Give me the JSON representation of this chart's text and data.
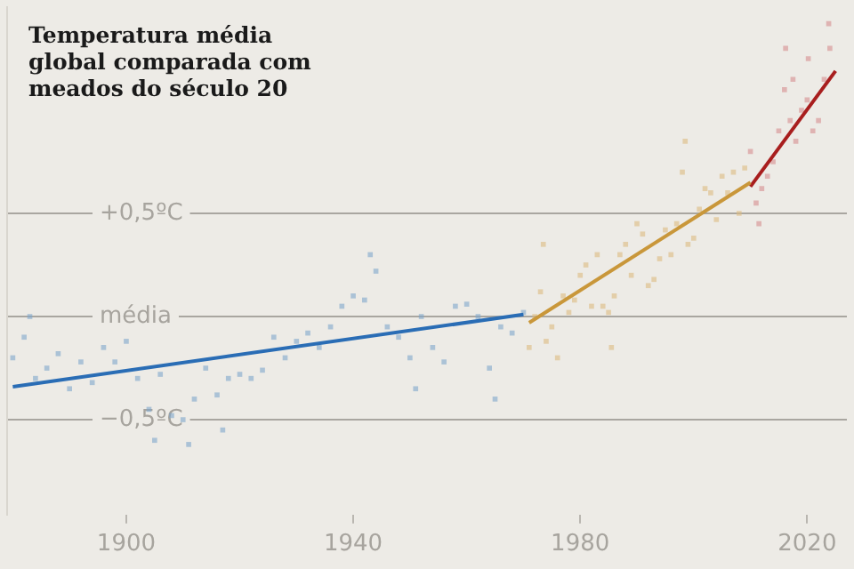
{
  "chart_data": {
    "type": "scatter",
    "title": "Temperatura média global comparada com meados do século 20",
    "xlim": [
      1879,
      2027
    ],
    "xticks": [
      1900,
      1940,
      1980,
      2020
    ],
    "ylim": [
      -0.96,
      1.5
    ],
    "yticks": [
      {
        "value": 0.5,
        "label": "+0,5ºC"
      },
      {
        "value": 0,
        "label": "média"
      },
      {
        "value": -0.5,
        "label": "−0,5ºC"
      }
    ],
    "grid": "y",
    "legend": false,
    "marker": "square",
    "series": [
      {
        "type": "scatter",
        "color": "#7fa6cc",
        "x": [
          1880,
          1882,
          1883,
          1884,
          1886,
          1888,
          1890,
          1892,
          1894,
          1896,
          1898,
          1900,
          1902,
          1904,
          1905,
          1906,
          1908,
          1910,
          1911,
          1912,
          1914,
          1916,
          1917,
          1918,
          1920,
          1922,
          1924,
          1926,
          1928,
          1930,
          1932,
          1934,
          1936,
          1938,
          1940,
          1942,
          1943,
          1944,
          1946,
          1948,
          1950,
          1951,
          1952,
          1954,
          1956,
          1958,
          1960,
          1962,
          1964,
          1965,
          1966,
          1968,
          1970
        ],
        "values": [
          -0.2,
          -0.1,
          0.0,
          -0.3,
          -0.25,
          -0.18,
          -0.35,
          -0.22,
          -0.32,
          -0.15,
          -0.22,
          -0.12,
          -0.3,
          -0.45,
          -0.6,
          -0.28,
          -0.48,
          -0.5,
          -0.62,
          -0.4,
          -0.25,
          -0.38,
          -0.55,
          -0.3,
          -0.28,
          -0.3,
          -0.26,
          -0.1,
          -0.2,
          -0.12,
          -0.08,
          -0.15,
          -0.05,
          0.05,
          0.1,
          0.08,
          0.3,
          0.22,
          -0.05,
          -0.1,
          -0.2,
          -0.35,
          0.0,
          -0.15,
          -0.22,
          0.05,
          0.06,
          0.0,
          -0.25,
          -0.4,
          -0.05,
          -0.08,
          0.02
        ]
      },
      {
        "type": "scatter",
        "color": "#dcbb80",
        "x": [
          1971,
          1972,
          1973,
          1973.5,
          1974,
          1975,
          1976,
          1977,
          1978,
          1979,
          1980,
          1981,
          1982,
          1983,
          1984,
          1985,
          1985.5,
          1986,
          1987,
          1988,
          1989,
          1990,
          1991,
          1992,
          1993,
          1994,
          1995,
          1996,
          1997,
          1998,
          1998.5,
          1999,
          2000,
          2001,
          2002,
          2003,
          2004,
          2005,
          2006,
          2007,
          2008,
          2009
        ],
        "values": [
          -0.15,
          0.0,
          0.12,
          0.35,
          -0.12,
          -0.05,
          -0.2,
          0.1,
          0.02,
          0.08,
          0.2,
          0.25,
          0.05,
          0.3,
          0.05,
          0.02,
          -0.15,
          0.1,
          0.3,
          0.35,
          0.2,
          0.45,
          0.4,
          0.15,
          0.18,
          0.28,
          0.42,
          0.3,
          0.45,
          0.7,
          0.85,
          0.35,
          0.38,
          0.52,
          0.62,
          0.6,
          0.47,
          0.68,
          0.6,
          0.7,
          0.5,
          0.72
        ]
      },
      {
        "type": "scatter",
        "color": "#d68e90",
        "x": [
          2010,
          2011,
          2011.5,
          2012,
          2013,
          2014,
          2015,
          2016,
          2016.2,
          2017,
          2017.5,
          2018,
          2019,
          2020,
          2020.2,
          2021,
          2022,
          2023,
          2023.8,
          2024
        ],
        "values": [
          0.8,
          0.55,
          0.45,
          0.62,
          0.68,
          0.75,
          0.9,
          1.1,
          1.3,
          0.95,
          1.15,
          0.85,
          1.0,
          1.05,
          1.25,
          0.9,
          0.95,
          1.15,
          1.42,
          1.3
        ]
      },
      {
        "type": "line",
        "marker": "none",
        "color": "#2a6db5",
        "x": [
          1880,
          1970
        ],
        "values": [
          -0.34,
          0.01
        ]
      },
      {
        "type": "line",
        "marker": "none",
        "color": "#c9973a",
        "x": [
          1971,
          2010
        ],
        "values": [
          -0.03,
          0.65
        ]
      },
      {
        "type": "line",
        "marker": "none",
        "color": "#a81e1e",
        "x": [
          2010,
          2025
        ],
        "values": [
          0.63,
          1.19
        ]
      }
    ]
  }
}
